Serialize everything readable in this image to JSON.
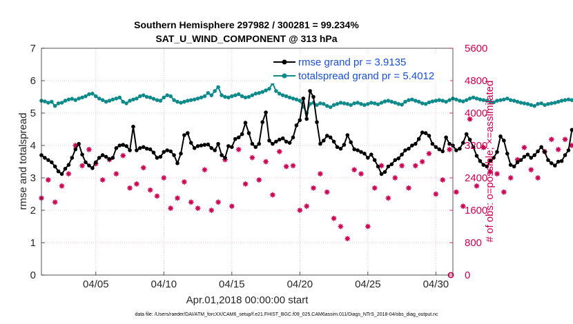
{
  "chart_data": {
    "type": "line",
    "title_line1": "Southern Hemisphere 297982 / 300281 = 99.234%",
    "title_line2": "SAT_U_WIND_COMPONENT @ 313 hPa",
    "xlabel": "Apr.01,2018 00:00:00 start",
    "ylabel": "rmse and totalspread",
    "y2label": "# of obs: o=possible; ×=assimilated",
    "footnote": "data file: /Users/raeder/DAI/ATM_forcXX/CAM6_setup/f.e21.FHIST_BGC.f09_025.CAM6assim.011/Diags_NTrS_2018-04/obs_diag_output.nc",
    "xlim": [
      1,
      31.25
    ],
    "ylim": [
      0,
      7
    ],
    "y2lim": [
      0,
      5600
    ],
    "xticks": [
      5,
      10,
      15,
      20,
      25,
      30
    ],
    "xtick_labels": [
      "04/05",
      "04/10",
      "04/15",
      "04/20",
      "04/25",
      "04/30"
    ],
    "yticks": [
      0,
      1,
      2,
      3,
      4,
      5,
      6,
      7
    ],
    "ytick_labels": [
      "0",
      "1",
      "2",
      "3",
      "4",
      "5",
      "6",
      "7"
    ],
    "y2ticks": [
      0,
      800,
      1600,
      2400,
      3200,
      4000,
      4800,
      5600
    ],
    "y2tick_labels": [
      "0",
      "800",
      "1600",
      "2400",
      "3200",
      "4000",
      "4800",
      "5600"
    ],
    "grid": true,
    "legend_position": "top-right",
    "colors": {
      "rmse": "#000000",
      "spread": "#0f8a8a",
      "obs": "#cc0052",
      "legend_text": "#1a4fd6",
      "grid": "#e0b4c4"
    },
    "series": [
      {
        "name": "rmse grand pr = 3.9135",
        "key": "rmse",
        "x_start": 1.0,
        "x_step": 0.25,
        "values": [
          3.7,
          3.62,
          3.55,
          3.48,
          3.35,
          3.2,
          3.12,
          3.28,
          3.4,
          3.62,
          3.88,
          4.05,
          3.72,
          3.48,
          3.38,
          3.3,
          3.48,
          3.62,
          3.7,
          3.65,
          3.58,
          3.62,
          3.92,
          4.0,
          4.02,
          3.98,
          3.85,
          4.58,
          3.85,
          3.92,
          3.95,
          3.9,
          3.88,
          3.78,
          3.62,
          3.65,
          3.8,
          3.85,
          3.82,
          3.7,
          3.45,
          3.75,
          4.32,
          4.38,
          4.08,
          3.92,
          3.98,
          4.0,
          4.02,
          4.03,
          3.92,
          3.85,
          4.05,
          3.7,
          3.62,
          3.98,
          3.95,
          4.2,
          4.25,
          4.35,
          4.7,
          4.38,
          4.05,
          3.95,
          4.05,
          4.72,
          5.02,
          4.15,
          4.05,
          4.12,
          4.18,
          4.22,
          4.12,
          4.08,
          4.25,
          4.62,
          4.78,
          5.45,
          4.82,
          5.68,
          5.5,
          4.72,
          4.05,
          4.15,
          4.3,
          4.25,
          4.12,
          3.95,
          3.9,
          4.02,
          4.32,
          4.1,
          3.88,
          3.85,
          3.8,
          3.75,
          3.62,
          3.72,
          3.55,
          3.35,
          3.12,
          3.18,
          3.35,
          3.42,
          3.55,
          3.6,
          3.72,
          3.85,
          3.9,
          4.0,
          4.05,
          4.2,
          4.4,
          4.38,
          4.3,
          4.05,
          3.95,
          3.88,
          3.82,
          4.25,
          4.05,
          4.0,
          3.85,
          3.9,
          4.08,
          4.35,
          4.18,
          3.95,
          3.68,
          3.52,
          3.4,
          3.35,
          3.52,
          3.62,
          3.8,
          4.28,
          4.15,
          3.75,
          3.4,
          3.35,
          3.48,
          3.55,
          3.65,
          3.72,
          3.62,
          3.7,
          3.82,
          3.95,
          3.8,
          3.55,
          3.45,
          3.38,
          3.5,
          3.52,
          3.7,
          3.85,
          4.48,
          4.55,
          3.98,
          4.1,
          4.32,
          4.58,
          4.4,
          4.25,
          4.35,
          4.72,
          4.62,
          4.55,
          4.68,
          4.22,
          4.18,
          4.05,
          3.92,
          3.58,
          3.48,
          3.3,
          3.12,
          3.15,
          3.25,
          3.42
        ],
        "grand_pr": 3.9135
      },
      {
        "name": "totalspread grand pr = 5.4012",
        "key": "spread",
        "x_start": 1.0,
        "x_step": 0.25,
        "values": [
          5.38,
          5.36,
          5.32,
          5.35,
          5.22,
          5.3,
          5.32,
          5.38,
          5.42,
          5.44,
          5.4,
          5.45,
          5.48,
          5.52,
          5.58,
          5.6,
          5.52,
          5.45,
          5.4,
          5.35,
          5.38,
          5.42,
          5.45,
          5.48,
          5.35,
          5.3,
          5.38,
          5.42,
          5.45,
          5.52,
          5.55,
          5.5,
          5.48,
          5.44,
          5.4,
          5.38,
          5.48,
          5.55,
          5.52,
          5.4,
          5.35,
          5.32,
          5.35,
          5.38,
          5.4,
          5.42,
          5.45,
          5.48,
          5.52,
          5.62,
          5.55,
          5.68,
          5.8,
          5.55,
          5.5,
          5.48,
          5.52,
          5.55,
          5.58,
          5.52,
          5.48,
          5.5,
          5.55,
          5.6,
          5.62,
          5.65,
          5.7,
          5.75,
          5.92,
          5.68,
          5.6,
          5.55,
          5.52,
          5.48,
          5.45,
          5.42,
          5.38,
          5.2,
          5.0,
          5.28,
          5.32,
          5.25,
          5.3,
          5.28,
          5.22,
          5.18,
          5.25,
          5.28,
          5.32,
          5.3,
          5.28,
          5.25,
          5.3,
          5.32,
          5.28,
          5.25,
          5.28,
          5.32,
          5.3,
          5.27,
          5.32,
          5.36,
          5.38,
          5.35,
          5.32,
          5.28,
          5.26,
          5.35,
          5.4,
          5.42,
          5.38,
          5.35,
          5.3,
          5.28,
          5.33,
          5.36,
          5.38,
          5.4,
          5.38,
          5.35,
          5.4,
          5.45,
          5.42,
          5.38,
          5.36,
          5.4,
          5.45,
          5.48,
          5.45,
          5.42,
          5.4,
          5.38,
          5.35,
          5.33,
          5.38,
          5.4,
          5.42,
          5.45,
          5.4,
          5.38,
          5.35,
          5.32,
          5.3,
          5.28,
          5.25,
          5.22,
          5.28,
          5.3,
          5.25,
          5.28,
          5.3,
          5.32,
          5.35,
          5.38,
          5.4,
          5.42,
          5.4,
          5.45,
          5.52,
          5.55,
          5.48,
          5.4,
          5.35,
          5.3,
          5.32,
          5.28,
          5.25,
          5.35,
          5.4,
          5.38,
          5.35,
          5.3,
          5.28,
          5.35,
          5.4
        ],
        "grand_pr": 5.4012
      },
      {
        "name": "# of obs assimilated",
        "key": "obs",
        "x_start": 1.0,
        "x_step": 0.5,
        "values": [
          1900,
          2350,
          1800,
          2200,
          2500,
          3200,
          2700,
          3100,
          2750,
          2350,
          2850,
          2500,
          2950,
          2150,
          2250,
          2650,
          2100,
          1950,
          2400,
          1650,
          1900,
          2300,
          1800,
          1650,
          2600,
          1600,
          1800,
          2850,
          1700,
          3100,
          2250,
          2900,
          2350,
          2800,
          1980,
          3050,
          2680,
          2700,
          1600,
          1700,
          2150,
          2500,
          2050,
          1400,
          1200,
          900,
          2600,
          2500,
          1200,
          2150,
          2700,
          1900,
          2400,
          2700,
          2150,
          2700,
          2800,
          3000,
          2000,
          2350,
          3100,
          2050,
          1700,
          3850,
          2200,
          3150,
          2550,
          2500,
          2050,
          2400,
          2850,
          3150,
          2600,
          2400,
          3050,
          3350,
          3100,
          3350,
          3200,
          3450,
          3600,
          3900,
          3400,
          3200,
          3650,
          3200,
          4200,
          3800,
          3100,
          4250
        ],
        "annotations": [
          {
            "x": 31.1,
            "y2": 0,
            "marker": "o"
          }
        ]
      }
    ]
  }
}
